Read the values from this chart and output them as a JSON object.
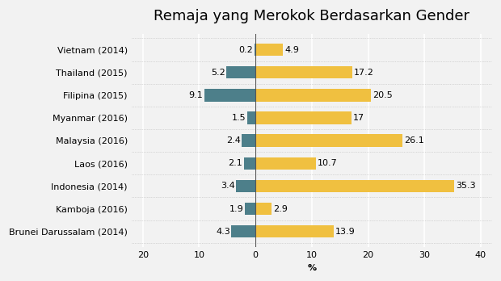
{
  "title": "Remaja yang Merokok Berdasarkan Gender",
  "categories": [
    "Vietnam (2014)",
    "Thailand (2015)",
    "Filipina (2015)",
    "Myanmar (2016)",
    "Malaysia (2016)",
    "Laos (2016)",
    "Indonesia (2014)",
    "Kamboja (2016)",
    "Brunei Darussalam (2014)"
  ],
  "female_values": [
    -0.2,
    -5.2,
    -9.1,
    -1.5,
    -2.4,
    -2.1,
    -3.4,
    -1.9,
    -4.3
  ],
  "male_values": [
    4.9,
    17.2,
    20.5,
    17,
    26.1,
    10.7,
    35.3,
    2.9,
    13.9
  ],
  "female_labels": [
    "0.2",
    "5.2",
    "9.1",
    "1.5",
    "2.4",
    "2.1",
    "3.4",
    "1.9",
    "4.3"
  ],
  "male_labels": [
    "4.9",
    "17.2",
    "20.5",
    "17",
    "26.1",
    "10.7",
    "35.3",
    "2.9",
    "13.9"
  ],
  "female_color": "#4d7f8a",
  "male_color": "#f0c040",
  "xlabel": "%",
  "xlim": [
    -22,
    42
  ],
  "xticks": [
    -20,
    -10,
    0,
    10,
    20,
    30,
    40
  ],
  "xticklabels": [
    "20",
    "10",
    "0",
    "10",
    "20",
    "30",
    "40"
  ],
  "background_color": "#f2f2f2",
  "grid_color": "#ffffff",
  "title_fontsize": 13,
  "label_fontsize": 8,
  "tick_fontsize": 8
}
